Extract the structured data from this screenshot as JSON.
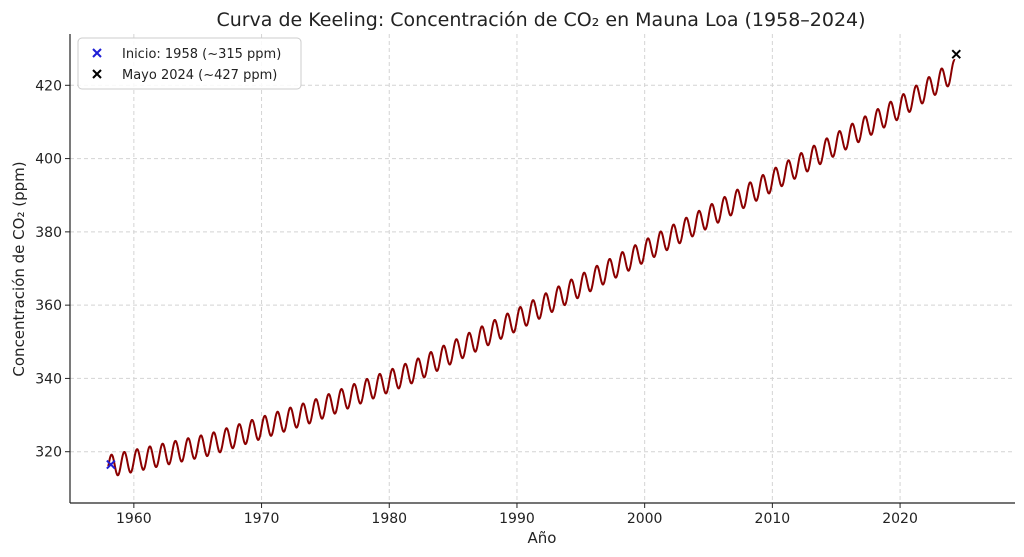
{
  "chart_data": {
    "type": "line",
    "title": "Curva de Keeling: Concentración de CO₂ en Mauna Loa (1958–2024)",
    "xlabel": "Año",
    "ylabel": "Concentración de CO₂ (ppm)",
    "xlim": [
      1955,
      2029
    ],
    "ylim": [
      306,
      434
    ],
    "xticks": [
      1960,
      1970,
      1980,
      1990,
      2000,
      2010,
      2020
    ],
    "yticks": [
      320,
      340,
      360,
      380,
      400,
      420
    ],
    "grid": true,
    "legend_position": "top-left",
    "series": [
      {
        "trend": {
          "x": [
            1958,
            1966,
            1974,
            1982,
            1990,
            1998,
            2006,
            2014,
            2020,
            2024.3
          ],
          "y": [
            316,
            322,
            331,
            342,
            356,
            371,
            386,
            402,
            414,
            424
          ]
        },
        "seasonal_amplitude_ppm": 3,
        "x_range": [
          1958,
          2024.3
        ],
        "color": "#8B0000"
      }
    ],
    "markers": [
      {
        "label": "Inicio: 1958 (~315 ppm)",
        "x": 1958.2,
        "y": 316.5,
        "color": "#1f1fd6"
      },
      {
        "label": "Mayo 2024 (~427 ppm)",
        "x": 2024.4,
        "y": 428.5,
        "color": "#000000"
      }
    ]
  }
}
